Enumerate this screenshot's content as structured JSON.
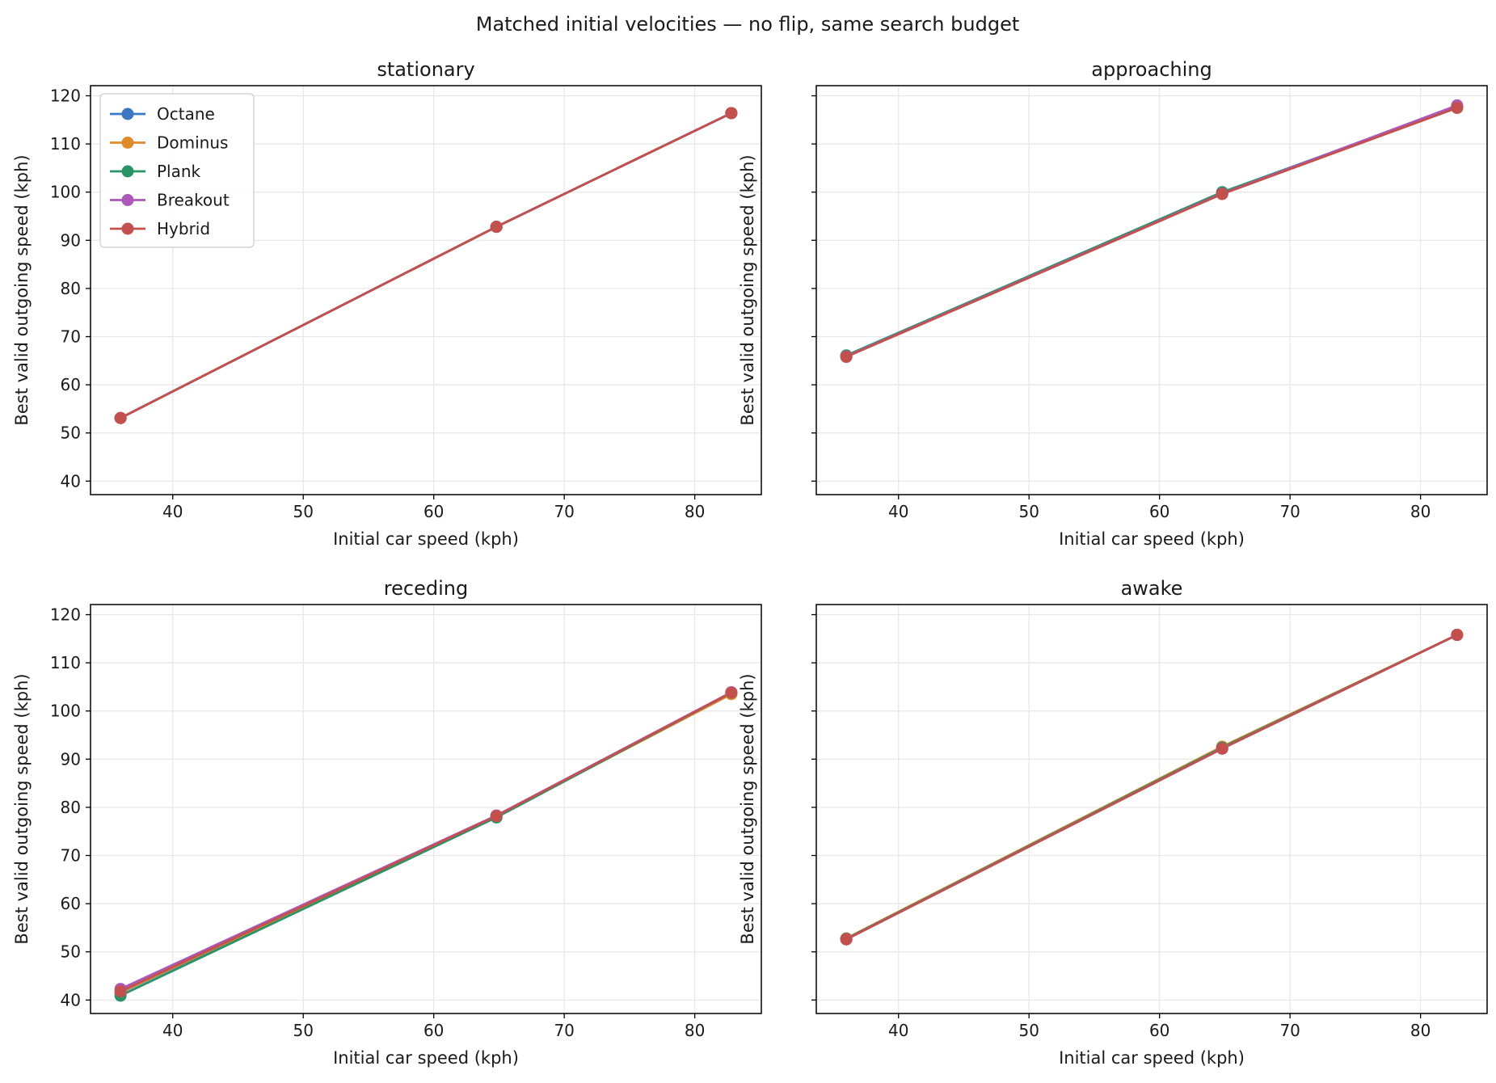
{
  "figure": {
    "suptitle": "Matched initial velocities — no flip, same search budget"
  },
  "series_styles": [
    {
      "name": "Octane",
      "color": "#3b78c3"
    },
    {
      "name": "Dominus",
      "color": "#e08b2a"
    },
    {
      "name": "Plank",
      "color": "#2a9466"
    },
    {
      "name": "Breakout",
      "color": "#ab58b8"
    },
    {
      "name": "Hybrid",
      "color": "#c4504d"
    }
  ],
  "chart_data": [
    {
      "type": "line",
      "title": "stationary",
      "xlabel": "Initial car speed (kph)",
      "ylabel": "Best valid outgoing speed (kph)",
      "x": [
        36,
        64.8,
        82.8
      ],
      "xlim": [
        33.7,
        85.1
      ],
      "ylim": [
        37.2,
        122.1
      ],
      "xticks": [
        40,
        50,
        60,
        70,
        80
      ],
      "yticks": [
        40,
        50,
        60,
        70,
        80,
        90,
        100,
        110,
        120
      ],
      "show_ytick_labels": true,
      "grid": true,
      "legend": "upper left",
      "series": [
        {
          "name": "Octane",
          "values": [
            53.1,
            92.8,
            116.4
          ]
        },
        {
          "name": "Dominus",
          "values": [
            53.1,
            92.8,
            116.4
          ]
        },
        {
          "name": "Plank",
          "values": [
            53.1,
            92.8,
            116.4
          ]
        },
        {
          "name": "Breakout",
          "values": [
            53.1,
            92.8,
            116.4
          ]
        },
        {
          "name": "Hybrid",
          "values": [
            53.1,
            92.8,
            116.4
          ]
        }
      ]
    },
    {
      "type": "line",
      "title": "approaching",
      "xlabel": "Initial car speed (kph)",
      "ylabel": "Best valid outgoing speed (kph)",
      "x": [
        36,
        64.8,
        82.8
      ],
      "xlim": [
        33.7,
        85.1
      ],
      "ylim": [
        37.2,
        122.1
      ],
      "xticks": [
        40,
        50,
        60,
        70,
        80
      ],
      "yticks": [
        40,
        50,
        60,
        70,
        80,
        90,
        100,
        110,
        120
      ],
      "show_ytick_labels": false,
      "grid": true,
      "legend": "",
      "series": [
        {
          "name": "Octane",
          "values": [
            66.0,
            99.9,
            117.8
          ]
        },
        {
          "name": "Dominus",
          "values": [
            65.9,
            99.7,
            117.5
          ]
        },
        {
          "name": "Plank",
          "values": [
            66.1,
            100.0,
            117.6
          ]
        },
        {
          "name": "Breakout",
          "values": [
            65.9,
            99.7,
            118.0
          ]
        },
        {
          "name": "Hybrid",
          "values": [
            65.8,
            99.6,
            117.5
          ]
        }
      ]
    },
    {
      "type": "line",
      "title": "receding",
      "xlabel": "Initial car speed (kph)",
      "ylabel": "Best valid outgoing speed (kph)",
      "x": [
        36,
        64.8,
        82.8
      ],
      "xlim": [
        33.7,
        85.1
      ],
      "ylim": [
        37.2,
        122.1
      ],
      "xticks": [
        40,
        50,
        60,
        70,
        80
      ],
      "yticks": [
        40,
        50,
        60,
        70,
        80,
        90,
        100,
        110,
        120
      ],
      "show_ytick_labels": true,
      "grid": true,
      "legend": "",
      "series": [
        {
          "name": "Octane",
          "values": [
            41.5,
            78.0,
            103.8
          ]
        },
        {
          "name": "Dominus",
          "values": [
            41.6,
            78.1,
            103.5
          ]
        },
        {
          "name": "Plank",
          "values": [
            40.9,
            77.9,
            103.8
          ]
        },
        {
          "name": "Breakout",
          "values": [
            42.3,
            78.3,
            103.9
          ]
        },
        {
          "name": "Hybrid",
          "values": [
            41.8,
            78.2,
            103.8
          ]
        }
      ]
    },
    {
      "type": "line",
      "title": "awake",
      "xlabel": "Initial car speed (kph)",
      "ylabel": "Best valid outgoing speed (kph)",
      "x": [
        36,
        64.8,
        82.8
      ],
      "xlim": [
        33.7,
        85.1
      ],
      "ylim": [
        37.2,
        122.1
      ],
      "xticks": [
        40,
        50,
        60,
        70,
        80
      ],
      "yticks": [
        40,
        50,
        60,
        70,
        80,
        90,
        100,
        110,
        120
      ],
      "show_ytick_labels": false,
      "grid": true,
      "legend": "",
      "series": [
        {
          "name": "Octane",
          "values": [
            52.6,
            92.2,
            115.8
          ]
        },
        {
          "name": "Dominus",
          "values": [
            52.8,
            92.6,
            115.8
          ]
        },
        {
          "name": "Plank",
          "values": [
            52.7,
            92.4,
            115.8
          ]
        },
        {
          "name": "Breakout",
          "values": [
            52.6,
            92.2,
            115.8
          ]
        },
        {
          "name": "Hybrid",
          "values": [
            52.6,
            92.2,
            115.8
          ]
        }
      ]
    }
  ]
}
